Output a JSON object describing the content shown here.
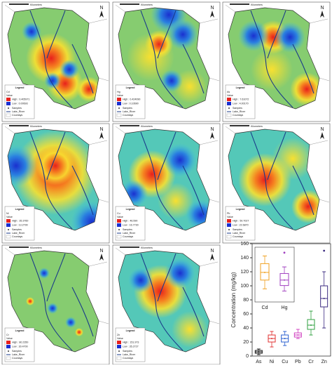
{
  "maps": [
    {
      "element": "Cd",
      "high": "High : 0.405971",
      "low": "Low : 0.00693"
    },
    {
      "element": "Hg",
      "high": "High : 0.424090",
      "low": "Low : 0.10690"
    },
    {
      "element": "As",
      "high": "High : 7.61072",
      "low": "Low : 4.00170"
    },
    {
      "element": "Ni",
      "high": "High : 35.3760",
      "low": "Low : 13.2790"
    },
    {
      "element": "Cu",
      "high": "High : 46.590",
      "low": "Low : 16.7730"
    },
    {
      "element": "Pb",
      "high": "High : 50.7027",
      "low": "Low : 22.6870"
    },
    {
      "element": "Cr",
      "high": "High : 80.2350",
      "low": "Low : 30.4700"
    },
    {
      "element": "Zn",
      "high": "High : 151.973",
      "low": "Low : 35.2727"
    }
  ],
  "legend_common": {
    "title": "Legend",
    "value": "Value",
    "samples": "Samples",
    "river": "Lake_River",
    "county": "Countays",
    "north": "N",
    "scale": "Kilometers"
  },
  "chart_data": {
    "type": "box",
    "y_label": "Concentration (mg/kg)",
    "ylim": [
      0,
      160
    ],
    "yticks": [
      0,
      20,
      40,
      60,
      80,
      100,
      120,
      140,
      160
    ],
    "series": [
      {
        "name": "As",
        "color": "#111111",
        "min": 2,
        "q1": 4,
        "median": 6,
        "q3": 8,
        "max": 10
      },
      {
        "name": "Ni",
        "color": "#e03030",
        "min": 13,
        "q1": 20,
        "median": 25,
        "q3": 30,
        "max": 35
      },
      {
        "name": "Cu",
        "color": "#2a5fd0",
        "min": 15,
        "q1": 20,
        "median": 25,
        "q3": 30,
        "max": 35
      },
      {
        "name": "Pb",
        "color": "#d040c0",
        "min": 25,
        "q1": 27,
        "median": 30,
        "q3": 33,
        "max": 38
      },
      {
        "name": "Cr",
        "color": "#30a040",
        "min": 30,
        "q1": 38,
        "median": 44,
        "q3": 52,
        "max": 64
      },
      {
        "name": "Zn",
        "color": "#3b2a80",
        "min": 40,
        "q1": 70,
        "median": 82,
        "q3": 100,
        "max": 120,
        "outlier": 150
      }
    ],
    "inset": {
      "ylim": [
        0,
        0.5
      ],
      "series": [
        {
          "name": "Cd",
          "color": "#f0a020",
          "min": 0.12,
          "q1": 0.2,
          "median": 0.27,
          "q3": 0.35,
          "max": 0.42
        },
        {
          "name": "Hg",
          "color": "#a040c0",
          "min": 0.1,
          "q1": 0.15,
          "median": 0.2,
          "q3": 0.26,
          "max": 0.32,
          "outlier": 0.45
        }
      ]
    }
  }
}
